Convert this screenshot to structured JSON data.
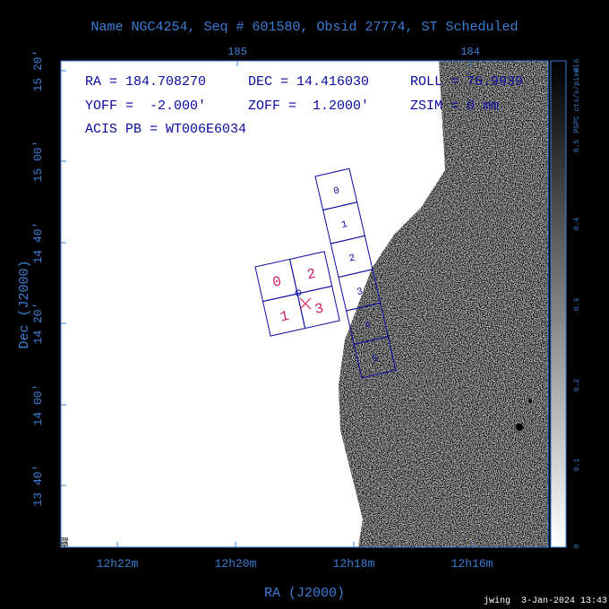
{
  "header": {
    "title": "Name NGC4254, Seq # 601580, Obsid 27774, ST Scheduled"
  },
  "top_axis": {
    "labels": [
      "185",
      "184"
    ]
  },
  "left_axis": {
    "labels": [
      "15 20'",
      "15 00'",
      "14 40'",
      "14 20'",
      "14 00'",
      "13 40'"
    ],
    "title": "Dec (J2000)"
  },
  "bottom_axis": {
    "labels": [
      "12h22m",
      "12h20m",
      "12h18m",
      "12h16m"
    ],
    "title": "RA (J2000)"
  },
  "info": [
    "RA = 184.708270",
    "DEC = 14.416030",
    "ROLL = 76.9939",
    "YOFF =  -2.000'",
    "ZOFF =  1.2000'",
    "ZSIM = 0 mm",
    "ACIS PB = WT006E6034"
  ],
  "colorbar": {
    "label": "PSPC cts/s/pixel",
    "ticks": [
      "0",
      "0.1",
      "0.2",
      "0.3",
      "0.4",
      "0.5",
      "0.6"
    ]
  },
  "acis_s": {
    "chips": [
      "0",
      "1",
      "2",
      "3",
      "4",
      "5"
    ]
  },
  "acis_i": {
    "chips": [
      "0",
      "2",
      "1",
      "3"
    ]
  },
  "footer": "jwing  3-Jan-2024 13:43"
}
